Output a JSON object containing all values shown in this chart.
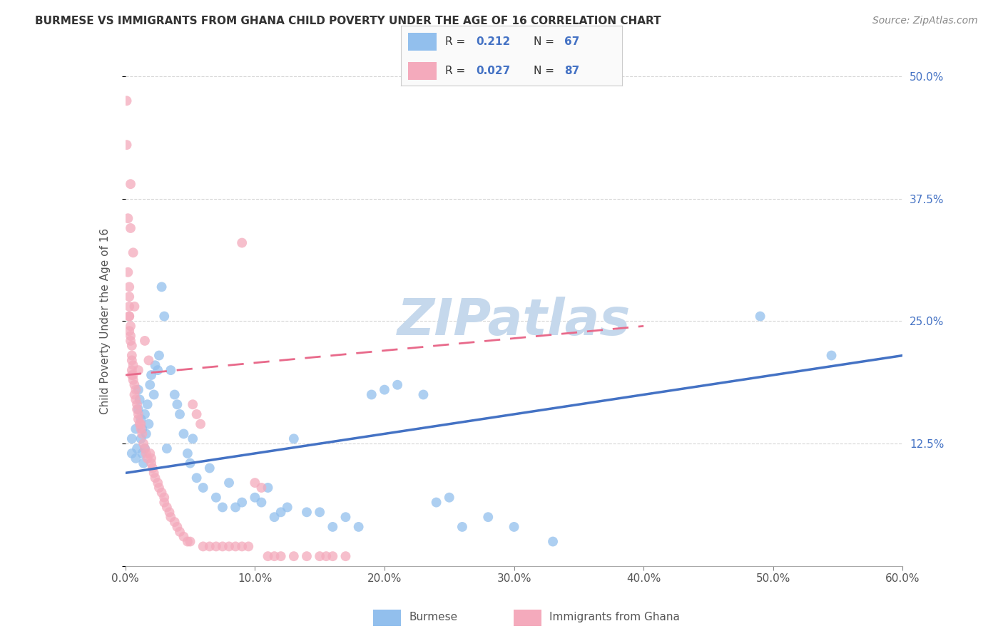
{
  "title": "BURMESE VS IMMIGRANTS FROM GHANA CHILD POVERTY UNDER THE AGE OF 16 CORRELATION CHART",
  "source": "Source: ZipAtlas.com",
  "ylabel": "Child Poverty Under the Age of 16",
  "x_min": 0.0,
  "x_max": 0.6,
  "y_min": 0.0,
  "y_max": 0.5,
  "x_ticks": [
    0.0,
    0.1,
    0.2,
    0.3,
    0.4,
    0.5,
    0.6
  ],
  "x_tick_labels": [
    "0.0%",
    "10.0%",
    "20.0%",
    "30.0%",
    "40.0%",
    "50.0%",
    "60.0%"
  ],
  "y_ticks": [
    0.0,
    0.125,
    0.25,
    0.375,
    0.5
  ],
  "y_tick_labels_right": [
    "",
    "12.5%",
    "25.0%",
    "37.5%",
    "50.0%"
  ],
  "burmese_color": "#92BFED",
  "ghana_color": "#F4AABC",
  "burmese_R": 0.212,
  "burmese_N": 67,
  "ghana_R": 0.027,
  "ghana_N": 87,
  "watermark": "ZIPatlas",
  "legend_label_burmese": "Burmese",
  "legend_label_ghana": "Immigrants from Ghana",
  "burmese_trend_x": [
    0.0,
    0.6
  ],
  "burmese_trend_y": [
    0.095,
    0.215
  ],
  "ghana_trend_x": [
    0.0,
    0.4
  ],
  "ghana_trend_y": [
    0.195,
    0.245
  ],
  "background_color": "#FFFFFF",
  "grid_color": "#CCCCCC",
  "watermark_color": "#C5D8EC",
  "watermark_fontsize": 52,
  "burmese_scatter_x": [
    0.005,
    0.005,
    0.008,
    0.008,
    0.009,
    0.01,
    0.01,
    0.011,
    0.012,
    0.012,
    0.013,
    0.013,
    0.014,
    0.015,
    0.015,
    0.016,
    0.017,
    0.018,
    0.019,
    0.02,
    0.022,
    0.023,
    0.025,
    0.026,
    0.028,
    0.03,
    0.032,
    0.035,
    0.038,
    0.04,
    0.042,
    0.045,
    0.048,
    0.05,
    0.052,
    0.055,
    0.06,
    0.065,
    0.07,
    0.075,
    0.08,
    0.085,
    0.09,
    0.1,
    0.105,
    0.11,
    0.115,
    0.12,
    0.125,
    0.13,
    0.14,
    0.15,
    0.16,
    0.17,
    0.18,
    0.19,
    0.2,
    0.21,
    0.23,
    0.24,
    0.25,
    0.26,
    0.28,
    0.3,
    0.33,
    0.49,
    0.545
  ],
  "burmese_scatter_y": [
    0.115,
    0.13,
    0.14,
    0.11,
    0.12,
    0.16,
    0.18,
    0.17,
    0.15,
    0.13,
    0.14,
    0.115,
    0.105,
    0.12,
    0.155,
    0.135,
    0.165,
    0.145,
    0.185,
    0.195,
    0.175,
    0.205,
    0.2,
    0.215,
    0.285,
    0.255,
    0.12,
    0.2,
    0.175,
    0.165,
    0.155,
    0.135,
    0.115,
    0.105,
    0.13,
    0.09,
    0.08,
    0.1,
    0.07,
    0.06,
    0.085,
    0.06,
    0.065,
    0.07,
    0.065,
    0.08,
    0.05,
    0.055,
    0.06,
    0.13,
    0.055,
    0.055,
    0.04,
    0.05,
    0.04,
    0.175,
    0.18,
    0.185,
    0.175,
    0.065,
    0.07,
    0.04,
    0.05,
    0.04,
    0.025,
    0.255,
    0.215
  ],
  "ghana_scatter_x": [
    0.001,
    0.001,
    0.002,
    0.002,
    0.003,
    0.003,
    0.003,
    0.003,
    0.004,
    0.004,
    0.004,
    0.005,
    0.005,
    0.005,
    0.005,
    0.006,
    0.006,
    0.006,
    0.007,
    0.007,
    0.008,
    0.008,
    0.009,
    0.009,
    0.01,
    0.01,
    0.011,
    0.012,
    0.012,
    0.013,
    0.014,
    0.015,
    0.016,
    0.017,
    0.018,
    0.019,
    0.02,
    0.02,
    0.021,
    0.022,
    0.023,
    0.025,
    0.026,
    0.028,
    0.03,
    0.03,
    0.032,
    0.034,
    0.035,
    0.038,
    0.04,
    0.042,
    0.045,
    0.048,
    0.05,
    0.052,
    0.055,
    0.058,
    0.06,
    0.065,
    0.07,
    0.075,
    0.08,
    0.085,
    0.09,
    0.095,
    0.1,
    0.105,
    0.11,
    0.115,
    0.12,
    0.13,
    0.14,
    0.15,
    0.155,
    0.16,
    0.17,
    0.01,
    0.007,
    0.015,
    0.004,
    0.004,
    0.005,
    0.006,
    0.003,
    0.003,
    0.09
  ],
  "ghana_scatter_y": [
    0.475,
    0.43,
    0.355,
    0.3,
    0.285,
    0.275,
    0.265,
    0.255,
    0.245,
    0.235,
    0.23,
    0.225,
    0.215,
    0.21,
    0.195,
    0.32,
    0.205,
    0.19,
    0.185,
    0.175,
    0.18,
    0.17,
    0.165,
    0.16,
    0.155,
    0.15,
    0.145,
    0.14,
    0.145,
    0.135,
    0.125,
    0.12,
    0.115,
    0.11,
    0.21,
    0.115,
    0.11,
    0.105,
    0.1,
    0.095,
    0.09,
    0.085,
    0.08,
    0.075,
    0.07,
    0.065,
    0.06,
    0.055,
    0.05,
    0.045,
    0.04,
    0.035,
    0.03,
    0.025,
    0.025,
    0.165,
    0.155,
    0.145,
    0.02,
    0.02,
    0.02,
    0.02,
    0.02,
    0.02,
    0.02,
    0.02,
    0.085,
    0.08,
    0.01,
    0.01,
    0.01,
    0.01,
    0.01,
    0.01,
    0.01,
    0.01,
    0.01,
    0.2,
    0.265,
    0.23,
    0.345,
    0.39,
    0.2,
    0.195,
    0.255,
    0.24,
    0.33
  ]
}
